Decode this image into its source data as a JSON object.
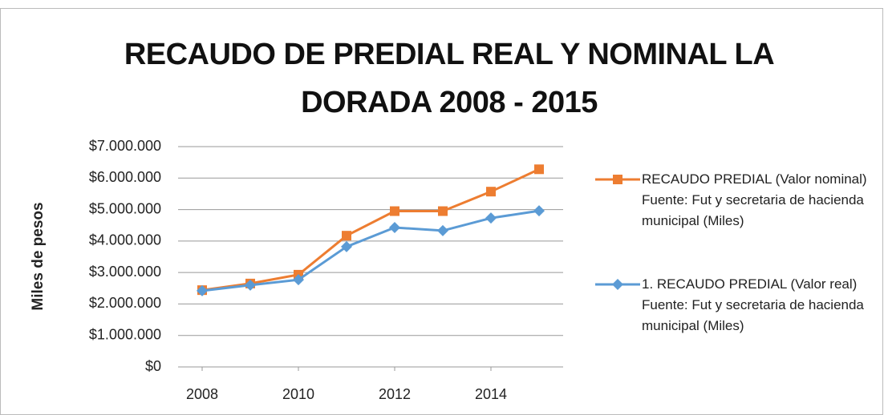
{
  "chart_data": {
    "type": "line",
    "title": "RECAUDO DE PREDIAL REAL Y NOMINAL LA DORADA 2008 - 2015",
    "y_label": "Miles de pesos",
    "x": [
      2008,
      2009,
      2010,
      2011,
      2012,
      2013,
      2014,
      2015
    ],
    "xlim": [
      2007.5,
      2015.5
    ],
    "xticks": [
      2008,
      2010,
      2012,
      2014
    ],
    "ylim": [
      0,
      7000000
    ],
    "yticks": [
      {
        "value": 0,
        "label": "$0"
      },
      {
        "value": 1000000,
        "label": "$1.000.000"
      },
      {
        "value": 2000000,
        "label": "$2.000.000"
      },
      {
        "value": 3000000,
        "label": "$3.000.000"
      },
      {
        "value": 4000000,
        "label": "$4.000.000"
      },
      {
        "value": 5000000,
        "label": "$5.000.000"
      },
      {
        "value": 6000000,
        "label": "$6.000.000"
      },
      {
        "value": 7000000,
        "label": "$7.000.000"
      }
    ],
    "grid": true,
    "legend": "right",
    "series": [
      {
        "name": "RECAUDO PREDIAL (Valor nominal) Fuente: Fut y secretaria de hacienda municipal   (Miles)",
        "color": "#ED7D31",
        "marker": "square",
        "values": [
          2440000,
          2650000,
          2930000,
          4170000,
          4950000,
          4950000,
          5570000,
          6280000
        ]
      },
      {
        "name": "1. RECAUDO PREDIAL (Valor real) Fuente: Fut y secretaria de hacienda municipal (Miles)",
        "color": "#5B9BD5",
        "marker": "diamond",
        "values": [
          2420000,
          2600000,
          2770000,
          3820000,
          4430000,
          4330000,
          4730000,
          4960000
        ]
      }
    ]
  }
}
